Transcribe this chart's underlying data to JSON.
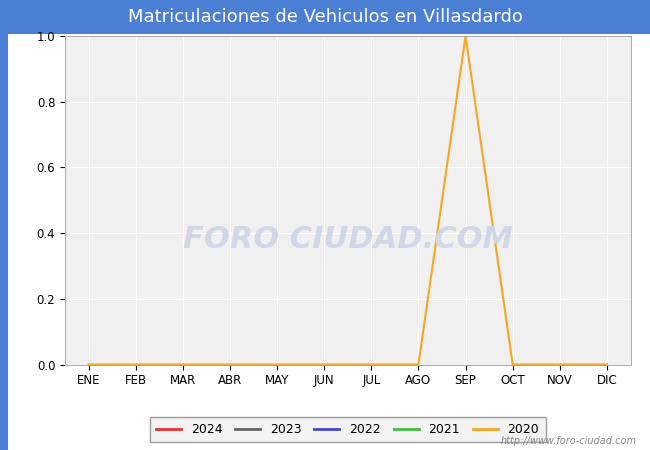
{
  "title": "Matriculaciones de Vehiculos en Villasdardo",
  "title_bg_color": "#4a7fd4",
  "title_text_color": "#ffffff",
  "months": [
    "ENE",
    "FEB",
    "MAR",
    "ABR",
    "MAY",
    "JUN",
    "JUL",
    "AGO",
    "SEP",
    "OCT",
    "NOV",
    "DIC"
  ],
  "ylim": [
    0.0,
    1.0
  ],
  "yticks": [
    0.0,
    0.2,
    0.4,
    0.6,
    0.8,
    1.0
  ],
  "series": {
    "2024": {
      "color": "#e83030",
      "data": [
        null,
        null,
        null,
        null,
        null,
        null,
        null,
        null,
        null,
        null,
        null,
        null
      ]
    },
    "2023": {
      "color": "#666666",
      "data": [
        null,
        null,
        null,
        null,
        null,
        null,
        null,
        null,
        null,
        null,
        null,
        null
      ]
    },
    "2022": {
      "color": "#4444cc",
      "data": [
        null,
        null,
        null,
        null,
        null,
        null,
        null,
        null,
        null,
        null,
        null,
        null
      ]
    },
    "2021": {
      "color": "#44bb44",
      "data": [
        null,
        null,
        null,
        null,
        null,
        null,
        null,
        null,
        null,
        null,
        null,
        null
      ]
    },
    "2020": {
      "color": "#f5a623",
      "data": [
        0.0,
        0.0,
        0.0,
        0.0,
        0.0,
        0.0,
        0.0,
        0.0,
        1.0,
        0.0,
        0.0,
        0.0
      ]
    }
  },
  "legend_years": [
    "2024",
    "2023",
    "2022",
    "2021",
    "2020"
  ],
  "plot_bg_color": "#f0f0f0",
  "fig_bg_color": "#ffffff",
  "watermark": "FORO CIUDAD.COM",
  "watermark_color": "#d0d8e8",
  "url_text": "http://www.foro-ciudad.com",
  "grid_color": "#ffffff",
  "left_border_color": "#4a7fd4",
  "title_fontsize": 13,
  "tick_fontsize": 8.5
}
